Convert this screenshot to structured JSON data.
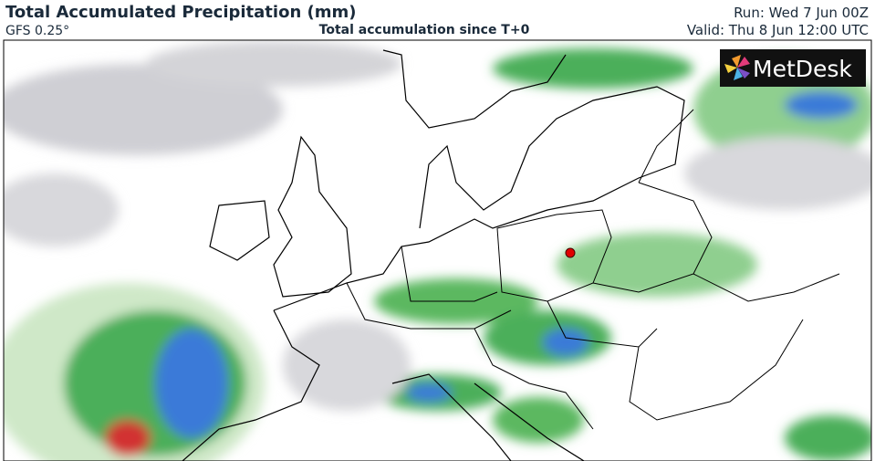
{
  "header": {
    "title": "Total Accumulated Precipitation (mm)",
    "model": "GFS 0.25°",
    "subtitle": "Total accumulation since T+0",
    "run": "Run: Wed 7 Jun 00Z",
    "valid": "Valid: Thu 8 Jun 12:00 UTC"
  },
  "logo": {
    "text": "MetDesk"
  }
}
